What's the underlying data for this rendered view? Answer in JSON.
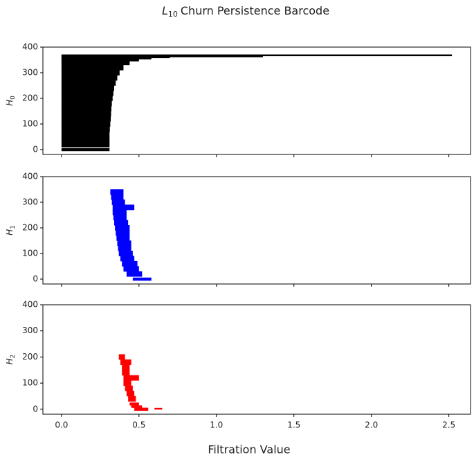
{
  "title": {
    "symbol": "L",
    "subscript": "10",
    "text": "Churn Persistence Barcode"
  },
  "xlabel": "Filtration Value",
  "chart_data": [
    {
      "type": "barcode",
      "ylabel": {
        "symbol": "H",
        "subscript": "0"
      },
      "color": "#000000",
      "index": [
        0,
        20,
        40,
        60,
        80,
        100,
        120,
        140,
        160,
        180,
        200,
        220,
        240,
        260,
        280,
        300,
        320,
        340,
        350,
        356,
        360,
        364,
        368
      ],
      "birth": [
        0,
        0,
        0,
        0,
        0,
        0,
        0,
        0,
        0,
        0,
        0,
        0,
        0,
        0,
        0,
        0,
        0,
        0,
        0,
        0,
        0,
        0,
        0
      ],
      "death": [
        0.31,
        0.31,
        0.31,
        0.31,
        0.312,
        0.315,
        0.318,
        0.32,
        0.322,
        0.325,
        0.33,
        0.335,
        0.34,
        0.35,
        0.36,
        0.375,
        0.4,
        0.44,
        0.5,
        0.58,
        0.7,
        1.3,
        2.52
      ],
      "xlim": [
        -0.12,
        2.64
      ],
      "ylim": [
        -19,
        400
      ],
      "yticks": [
        0,
        100,
        200,
        300,
        400
      ],
      "xticks": [
        0,
        0.5,
        1,
        1.5,
        2,
        2.5
      ]
    },
    {
      "type": "barcode",
      "ylabel": {
        "symbol": "H",
        "subscript": "1"
      },
      "color": "#0000ff",
      "index": [
        0,
        20,
        40,
        60,
        80,
        100,
        120,
        140,
        160,
        180,
        200,
        220,
        240,
        260,
        280,
        300,
        320,
        340
      ],
      "birth": [
        0.46,
        0.42,
        0.4,
        0.39,
        0.38,
        0.37,
        0.365,
        0.36,
        0.355,
        0.35,
        0.345,
        0.34,
        0.335,
        0.33,
        0.33,
        0.325,
        0.32,
        0.315
      ],
      "death": [
        0.58,
        0.52,
        0.5,
        0.49,
        0.47,
        0.46,
        0.45,
        0.45,
        0.44,
        0.44,
        0.44,
        0.43,
        0.42,
        0.42,
        0.47,
        0.41,
        0.4,
        0.4
      ],
      "xlim": [
        -0.12,
        2.64
      ],
      "ylim": [
        -19,
        400
      ],
      "yticks": [
        0,
        100,
        200,
        300,
        400
      ],
      "xticks": [
        0,
        0.5,
        1,
        1.5,
        2,
        2.5
      ]
    },
    {
      "type": "barcode",
      "ylabel": {
        "symbol": "H",
        "subscript": "2"
      },
      "color": "#ff0000",
      "index": [
        0,
        2,
        10,
        20,
        40,
        60,
        80,
        100,
        120,
        140,
        160,
        180,
        200
      ],
      "birth": [
        0.47,
        0.6,
        0.45,
        0.44,
        0.43,
        0.42,
        0.41,
        0.4,
        0.4,
        0.39,
        0.39,
        0.38,
        0.37
      ],
      "death": [
        0.56,
        0.65,
        0.52,
        0.5,
        0.48,
        0.47,
        0.46,
        0.45,
        0.5,
        0.44,
        0.44,
        0.45,
        0.41
      ],
      "xlim": [
        -0.12,
        2.64
      ],
      "ylim": [
        -19,
        400
      ],
      "yticks": [
        0,
        100,
        200,
        300,
        400
      ],
      "xticks": [
        {
          "value": 0,
          "label": "0.0"
        },
        0.5,
        {
          "value": 1,
          "label": "1.0"
        },
        1.5,
        {
          "value": 2,
          "label": "2.0"
        },
        2.5
      ]
    }
  ]
}
